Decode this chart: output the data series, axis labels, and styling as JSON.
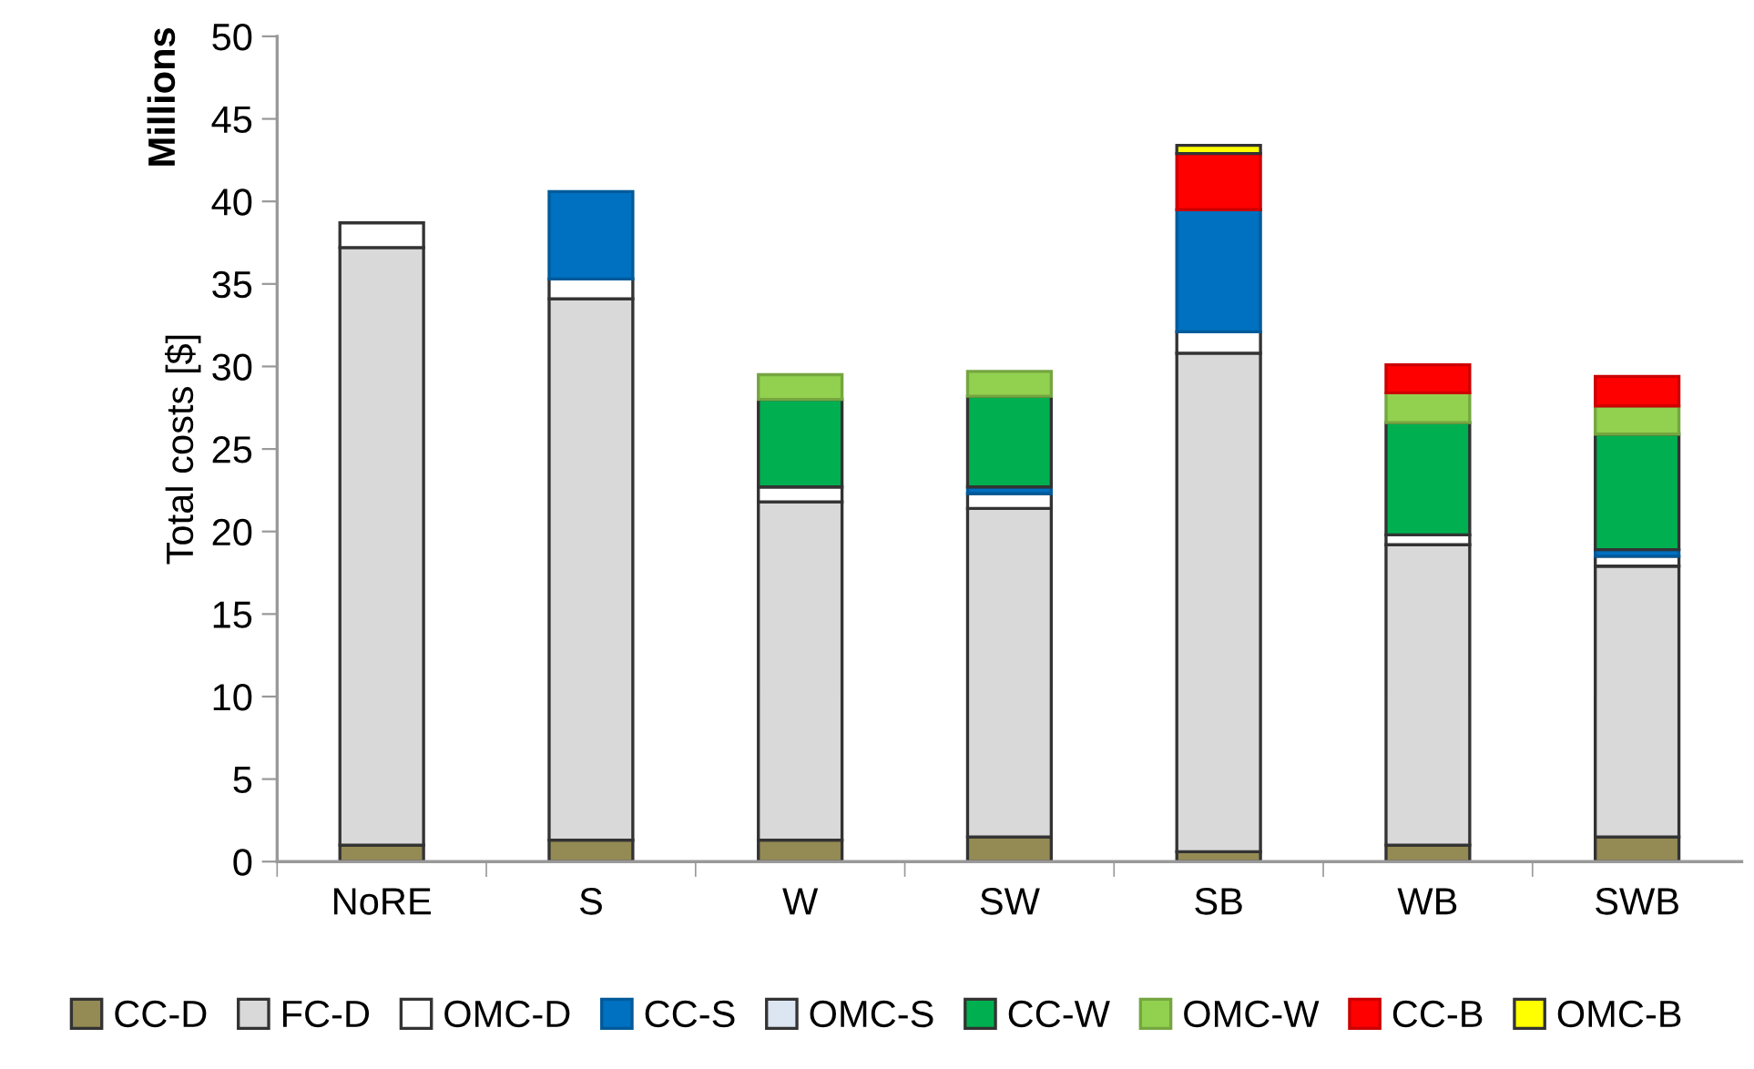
{
  "chart_data": {
    "type": "bar",
    "stacked": true,
    "ylabel": "Total costs [$]",
    "annotations": [
      "Millions"
    ],
    "categories": [
      "NoRE",
      "S",
      "W",
      "SW",
      "SB",
      "WB",
      "SWB"
    ],
    "ylim": [
      0,
      50
    ],
    "yticks": [
      0,
      5,
      10,
      15,
      20,
      25,
      30,
      35,
      40,
      45,
      50
    ],
    "grid": false,
    "legend": "bottom",
    "series": [
      {
        "name": "CC-D",
        "color": "#948a54",
        "values": [
          1.0,
          1.3,
          1.3,
          1.5,
          0.6,
          1.0,
          1.5
        ]
      },
      {
        "name": "FC-D",
        "color": "#d9d9d9",
        "values": [
          36.2,
          32.8,
          20.5,
          19.9,
          30.2,
          18.2,
          16.4
        ]
      },
      {
        "name": "OMC-D",
        "color": "#ffffff",
        "values": [
          1.5,
          1.2,
          0.9,
          0.9,
          1.3,
          0.6,
          0.6
        ]
      },
      {
        "name": "CC-S",
        "color": "#0070c0",
        "values": [
          null,
          5.3,
          null,
          0.4,
          7.4,
          null,
          0.4
        ]
      },
      {
        "name": "OMC-S",
        "color": "#dce6f2",
        "values": [
          null,
          null,
          null,
          null,
          null,
          null,
          null
        ]
      },
      {
        "name": "CC-W",
        "color": "#00b050",
        "values": [
          null,
          null,
          5.3,
          5.5,
          null,
          6.8,
          7.0
        ]
      },
      {
        "name": "OMC-W",
        "color": "#92d050",
        "values": [
          null,
          null,
          1.5,
          1.5,
          null,
          1.8,
          1.7
        ]
      },
      {
        "name": "CC-B",
        "color": "#ff0000",
        "values": [
          null,
          null,
          null,
          null,
          3.4,
          1.7,
          1.8
        ]
      },
      {
        "name": "OMC-B",
        "color": "#ffff00",
        "values": [
          null,
          null,
          null,
          null,
          0.5,
          null,
          null
        ]
      }
    ]
  }
}
